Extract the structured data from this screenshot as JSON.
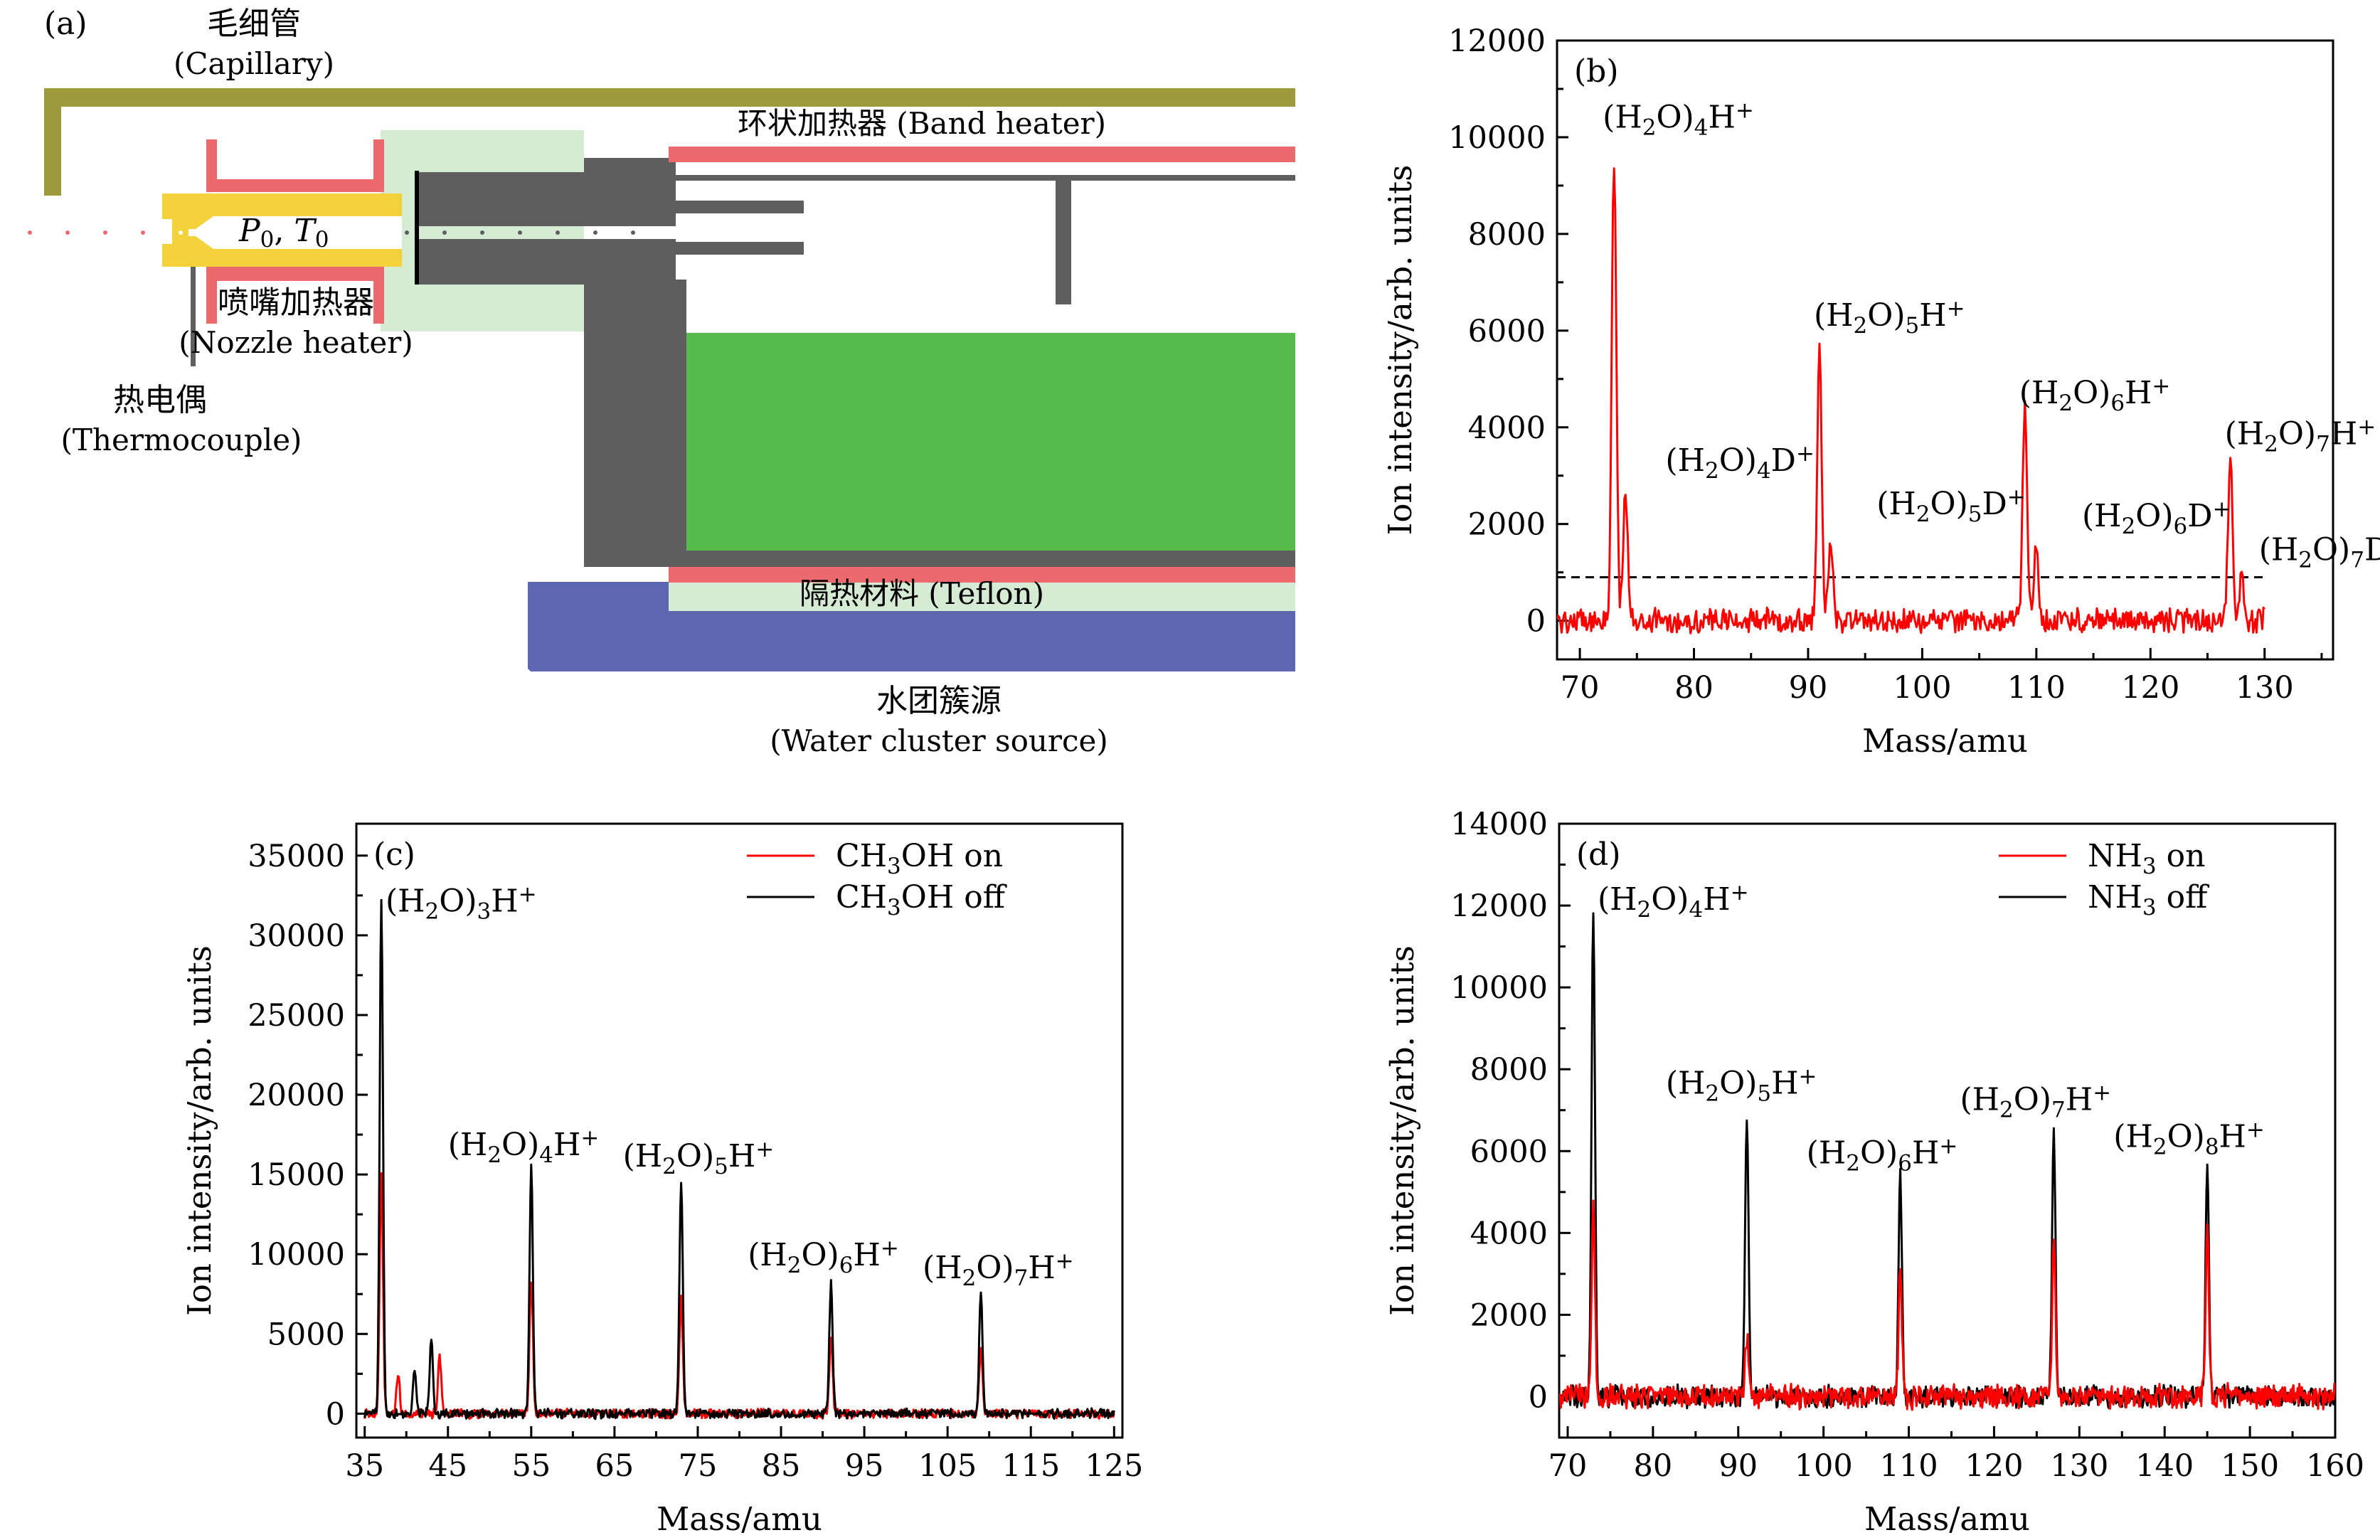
{
  "colors": {
    "capillary": "#9c9a3a",
    "heater": "#ec6a6e",
    "nozzle": "#f4d23c",
    "insulation": "#d6ebd4",
    "dark_gray": "#5e5e5e",
    "green": "#55bb4b",
    "blue": "#5d66b0",
    "red_series": "#ff0000",
    "black_series": "#000000"
  },
  "diagram": {
    "panel_letter": "(a)",
    "capillary_cn": "毛细管",
    "capillary_en": "(Capillary)",
    "band_heater": "环状加热器 (Band heater)",
    "p0": "P",
    "p0_sub": "0",
    "t0": "T",
    "t0_sub": "0",
    "nozzle_heater_cn": "喷嘴加热器",
    "nozzle_heater_en": "(Nozzle heater)",
    "thermocouple_cn": "热电偶",
    "thermocouple_en": "(Thermocouple)",
    "teflon": "隔热材料 (Teflon)",
    "source_cn": "水团簇源",
    "source_en": "(Water cluster source)"
  },
  "chart_data": [
    {
      "id": "b",
      "panel_letter": "(b)",
      "type": "line",
      "xlabel": "Mass/amu",
      "ylabel": "Ion intensity/arb. units",
      "xlim": [
        68,
        136
      ],
      "ylim": [
        -800,
        12000
      ],
      "xticks": [
        70,
        80,
        90,
        100,
        110,
        120,
        130
      ],
      "yticks": [
        0,
        2000,
        4000,
        6000,
        8000,
        10000,
        12000
      ],
      "threshold": 900,
      "series": [
        {
          "color": "#ff0000",
          "x_range": [
            68,
            130
          ],
          "noise": 220,
          "peaks": [
            [
              73,
              9600
            ],
            [
              74,
              2600
            ],
            [
              91,
              5500
            ],
            [
              92,
              1700
            ],
            [
              109,
              4400
            ],
            [
              110,
              1500
            ],
            [
              127,
              3300
            ],
            [
              128,
              850
            ]
          ]
        }
      ],
      "annotations": [
        {
          "pre": "(H",
          "sub": "2",
          "post": "O)",
          "sub2": "4",
          "tail": "H",
          "sup": "+",
          "x": 72.0,
          "y": 10200
        },
        {
          "pre": "(H",
          "sub": "2",
          "post": "O)",
          "sub2": "4",
          "tail": "D",
          "sup": "+",
          "x": 77.5,
          "y": 3100
        },
        {
          "pre": "(H",
          "sub": "2",
          "post": "O)",
          "sub2": "5",
          "tail": "H",
          "sup": "+",
          "x": 90.5,
          "y": 6100
        },
        {
          "pre": "(H",
          "sub": "2",
          "post": "O)",
          "sub2": "5",
          "tail": "D",
          "sup": "+",
          "x": 96.0,
          "y": 2200
        },
        {
          "pre": "(H",
          "sub": "2",
          "post": "O)",
          "sub2": "6",
          "tail": "H",
          "sup": "+",
          "x": 108.5,
          "y": 4500
        },
        {
          "pre": "(H",
          "sub": "2",
          "post": "O)",
          "sub2": "6",
          "tail": "D",
          "sup": "+",
          "x": 114.0,
          "y": 1950
        },
        {
          "pre": "(H",
          "sub": "2",
          "post": "O)",
          "sub2": "7",
          "tail": "H",
          "sup": "+",
          "x": 126.5,
          "y": 3650
        },
        {
          "pre": "(H",
          "sub": "2",
          "post": "O)",
          "sub2": "7",
          "tail": "D",
          "sup": "+",
          "x": 129.5,
          "y": 1250
        }
      ]
    },
    {
      "id": "c",
      "panel_letter": "(c)",
      "type": "line",
      "xlabel": "Mass/amu",
      "ylabel": "Ion intensity/arb. units",
      "xlim": [
        34,
        126
      ],
      "ylim": [
        -1500,
        37000
      ],
      "xticks": [
        35,
        45,
        55,
        65,
        75,
        85,
        95,
        105,
        115,
        125
      ],
      "yticks": [
        0,
        5000,
        10000,
        15000,
        20000,
        25000,
        30000,
        35000
      ],
      "legend": [
        {
          "pre": "CH",
          "sub": "3",
          "post": "OH on",
          "color": "#ff0000"
        },
        {
          "pre": "CH",
          "sub": "3",
          "post": "OH off",
          "color": "#000000"
        }
      ],
      "series": [
        {
          "color": "#ff0000",
          "x_range": [
            35,
            125
          ],
          "noise": 260,
          "peaks": [
            [
              37,
              15200
            ],
            [
              39,
              2500
            ],
            [
              44,
              3500
            ],
            [
              55,
              8500
            ],
            [
              73,
              7300
            ],
            [
              91,
              4700
            ],
            [
              109,
              4000
            ]
          ]
        },
        {
          "color": "#000000",
          "x_range": [
            35,
            125
          ],
          "noise": 260,
          "peaks": [
            [
              37,
              32300
            ],
            [
              41,
              2800
            ],
            [
              43,
              4700
            ],
            [
              55,
              15500
            ],
            [
              73,
              14700
            ],
            [
              91,
              8200
            ],
            [
              109,
              7600
            ]
          ]
        }
      ],
      "annotations": [
        {
          "pre": "(H",
          "sub": "2",
          "post": "O)",
          "sub2": "3",
          "tail": "H",
          "sup": "+",
          "x": 37.5,
          "y": 31500
        },
        {
          "pre": "(H",
          "sub": "2",
          "post": "O)",
          "sub2": "4",
          "tail": "H",
          "sup": "+",
          "x": 45.0,
          "y": 16200
        },
        {
          "pre": "(H",
          "sub": "2",
          "post": "O)",
          "sub2": "5",
          "tail": "H",
          "sup": "+",
          "x": 66.0,
          "y": 15500
        },
        {
          "pre": "(H",
          "sub": "2",
          "post": "O)",
          "sub2": "6",
          "tail": "H",
          "sup": "+",
          "x": 81.0,
          "y": 9300
        },
        {
          "pre": "(H",
          "sub": "2",
          "post": "O)",
          "sub2": "7",
          "tail": "H",
          "sup": "+",
          "x": 102.0,
          "y": 8500
        }
      ]
    },
    {
      "id": "d",
      "panel_letter": "(d)",
      "type": "line",
      "xlabel": "Mass/amu",
      "ylabel": "Ion intensity/arb. units",
      "xlim": [
        69,
        160
      ],
      "ylim": [
        -1000,
        14000
      ],
      "xticks": [
        70,
        80,
        90,
        100,
        110,
        120,
        130,
        140,
        150,
        160
      ],
      "yticks": [
        0,
        2000,
        4000,
        6000,
        8000,
        10000,
        12000,
        14000
      ],
      "legend": [
        {
          "pre": "NH",
          "sub": "3",
          "post": " on",
          "color": "#ff0000"
        },
        {
          "pre": "NH",
          "sub": "3",
          "post": " off",
          "color": "#000000"
        }
      ],
      "series": [
        {
          "color": "#000000",
          "x_range": [
            69,
            160
          ],
          "noise": 230,
          "peaks": [
            [
              73,
              11900
            ],
            [
              91,
              7000
            ],
            [
              109,
              5400
            ],
            [
              127,
              6600
            ],
            [
              145,
              5600
            ]
          ]
        },
        {
          "color": "#ff0000",
          "x_range": [
            69,
            160
          ],
          "noise": 260,
          "peaks": [
            [
              73,
              4800
            ],
            [
              91,
              1500
            ],
            [
              109,
              3100
            ],
            [
              127,
              3800
            ],
            [
              145,
              4100
            ]
          ]
        }
      ],
      "annotations": [
        {
          "pre": "(H",
          "sub": "2",
          "post": "O)",
          "sub2": "4",
          "tail": "H",
          "sup": "+",
          "x": 73.5,
          "y": 11900
        },
        {
          "pre": "(H",
          "sub": "2",
          "post": "O)",
          "sub2": "5",
          "tail": "H",
          "sup": "+",
          "x": 81.5,
          "y": 7400
        },
        {
          "pre": "(H",
          "sub": "2",
          "post": "O)",
          "sub2": "6",
          "tail": "H",
          "sup": "+",
          "x": 98.0,
          "y": 5700
        },
        {
          "pre": "(H",
          "sub": "2",
          "post": "O)",
          "sub2": "7",
          "tail": "H",
          "sup": "+",
          "x": 116.0,
          "y": 7000
        },
        {
          "pre": "(H",
          "sub": "2",
          "post": "O)",
          "sub2": "8",
          "tail": "H",
          "sup": "+",
          "x": 134.0,
          "y": 6100
        }
      ]
    }
  ]
}
